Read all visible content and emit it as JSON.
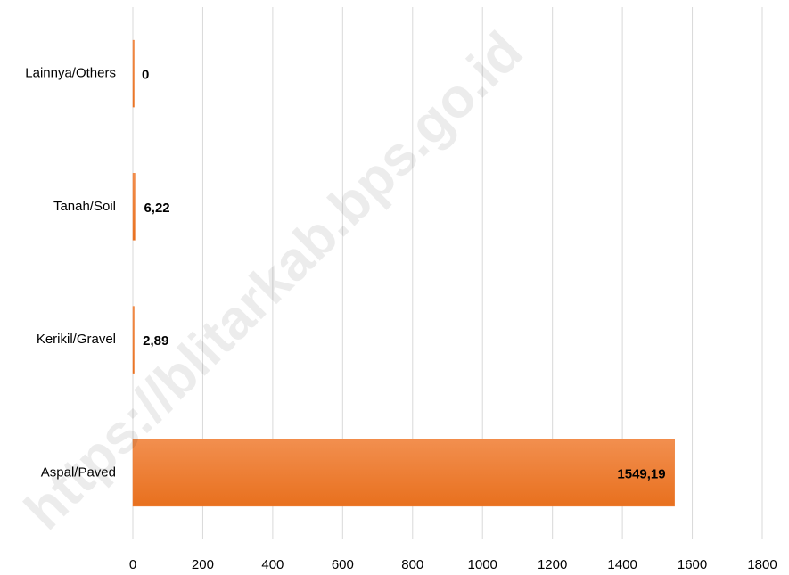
{
  "chart_data": {
    "type": "barh",
    "categories": [
      "Lainnya/Others",
      "Tanah/Soil",
      "Kerikil/Gravel",
      "Aspal/Paved"
    ],
    "values": [
      0,
      6.22,
      2.89,
      1549.19
    ],
    "value_labels": [
      "0",
      "6,22",
      "2,89",
      "1549,19"
    ],
    "color": "#ee7a2e",
    "xlim": [
      0,
      1800
    ],
    "xticks": [
      0,
      200,
      400,
      600,
      800,
      1000,
      1200,
      1400,
      1600,
      1800
    ],
    "grid": true,
    "watermark": "https://blitarkab.bps.go.id"
  }
}
